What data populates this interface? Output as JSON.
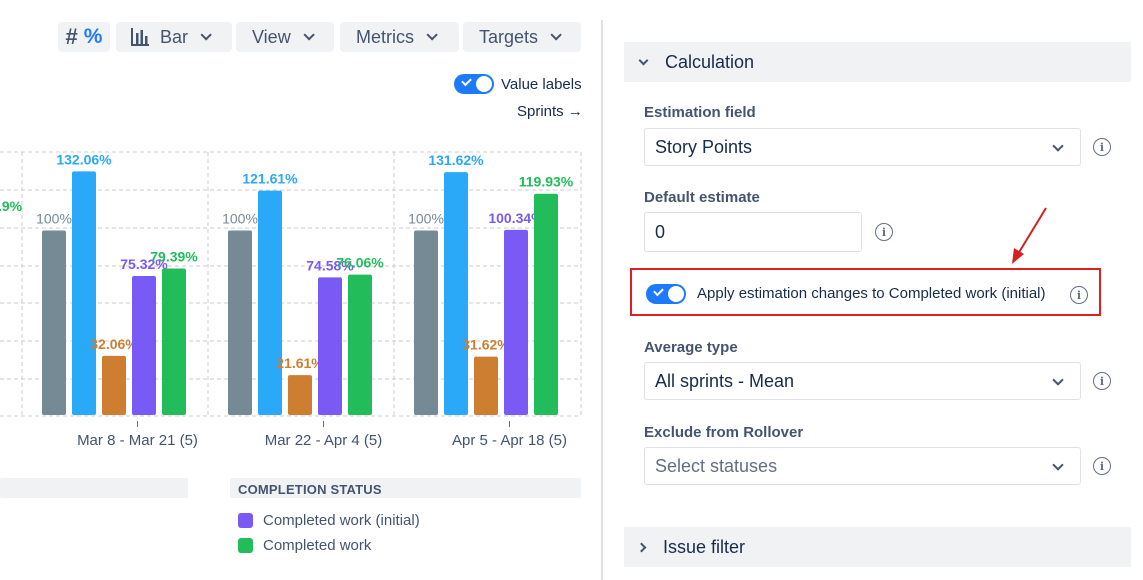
{
  "toolbar": {
    "hash_label": "#",
    "percent_label": "%",
    "bar_label": "Bar",
    "view_label": "View",
    "metrics_label": "Metrics",
    "targets_label": "Targets"
  },
  "chart_controls": {
    "value_labels_toggle": "Value labels",
    "sprints_link": "Sprints →"
  },
  "chart_data": {
    "type": "bar",
    "categories": [
      "Mar 8 - Mar 21 (5)",
      "Mar 22 - Apr 4 (5)",
      "Apr 5 - Apr 18 (5)"
    ],
    "series": [
      {
        "color": "#768a96",
        "values": [
          100,
          100,
          100
        ],
        "labels": [
          "100%",
          "100%",
          "100%"
        ]
      },
      {
        "color": "#2aa9f8",
        "values": [
          132.06,
          121.61,
          131.62
        ],
        "labels": [
          "132.06%",
          "121.61%",
          "131.62%"
        ]
      },
      {
        "color": "#ce7e30",
        "values": [
          32.06,
          21.61,
          31.62
        ],
        "labels": [
          "32.06%",
          "21.61%",
          "31.62%"
        ]
      },
      {
        "name": "Completed work (initial)",
        "color": "#7a5af5",
        "values": [
          75.32,
          74.58,
          100.34
        ],
        "labels": [
          "75.32%",
          "74.58%",
          "100.34%"
        ]
      },
      {
        "name": "Completed work",
        "color": "#22bd5a",
        "values": [
          79.39,
          76.06,
          119.93
        ],
        "labels": [
          "79.39%",
          "76.06%",
          "119.93%"
        ]
      }
    ],
    "partial_label": ".9%",
    "grid": true,
    "legend_placement": "bottom"
  },
  "legend": {
    "title": "COMPLETION STATUS",
    "items": [
      {
        "label": "Completed work (initial)",
        "color": "#7a5af5"
      },
      {
        "label": "Completed work",
        "color": "#22bd5a"
      }
    ]
  },
  "panel": {
    "calculation_title": "Calculation",
    "estimation_field_label": "Estimation field",
    "estimation_field_value": "Story Points",
    "default_estimate_label": "Default estimate",
    "default_estimate_value": "0",
    "apply_toggle_label": "Apply estimation changes to Completed work (initial)",
    "average_type_label": "Average type",
    "average_type_value": "All sprints - Mean",
    "exclude_label": "Exclude from Rollover",
    "exclude_placeholder": "Select statuses",
    "issue_filter_title": "Issue filter",
    "info_glyph": "i"
  },
  "colors": {
    "accent": "#1d7afc",
    "highlight": "#e01f1f",
    "annotation_arrow": "#d42020"
  }
}
